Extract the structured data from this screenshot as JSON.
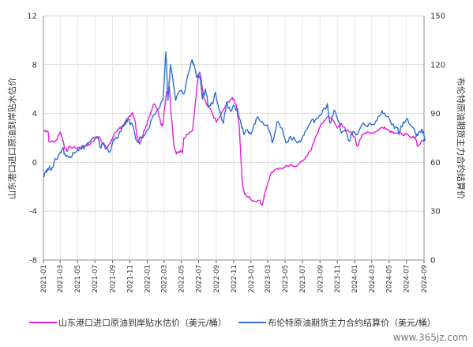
{
  "chart_data": {
    "type": "line",
    "title": "",
    "ylabel_left": "山东港口进口原油到岸贴水估价",
    "ylabel_right": "布伦特原油期货主力合约结算价",
    "y_left_ticks": [
      "-8",
      "-4",
      "0",
      "4",
      "8",
      "12"
    ],
    "y_right_ticks": [
      "0",
      "30",
      "60",
      "90",
      "120",
      "150"
    ],
    "ylim_left": [
      -8,
      12
    ],
    "ylim_right": [
      0,
      150
    ],
    "x_ticks": [
      "2021-01",
      "2021-03",
      "2021-05",
      "2021-07",
      "2021-09",
      "2021-11",
      "2022-01",
      "2022-03",
      "2022-05",
      "2022-07",
      "2022-09",
      "2022-11",
      "2023-01",
      "2023-03",
      "2023-05",
      "2023-07",
      "2023-09",
      "2023-11",
      "2024-01",
      "2024-03",
      "2024-05",
      "2024-07",
      "2024-09"
    ],
    "xlim": [
      "2021-01",
      "2024-09"
    ],
    "grid": true,
    "legend_position": "bottom",
    "series": [
      {
        "name": "山东港口进口原油到岸贴水估价（美元/桶）",
        "axis": "left",
        "color": "#e21fd9",
        "points": [
          [
            "2021-01-01",
            2.6
          ],
          [
            "2021-01-10",
            2.6
          ],
          [
            "2021-01-18",
            2.5
          ],
          [
            "2021-01-20",
            1.7
          ],
          [
            "2021-02-01",
            1.7
          ],
          [
            "2021-02-15",
            1.8
          ],
          [
            "2021-03-01",
            2.5
          ],
          [
            "2021-03-08",
            2.0
          ],
          [
            "2021-03-15",
            1.3
          ],
          [
            "2021-03-25",
            0.9
          ],
          [
            "2021-04-01",
            1.3
          ],
          [
            "2021-04-15",
            1.2
          ],
          [
            "2021-05-01",
            1.2
          ],
          [
            "2021-05-15",
            1.3
          ],
          [
            "2021-06-01",
            1.4
          ],
          [
            "2021-06-15",
            1.5
          ],
          [
            "2021-07-01",
            1.9
          ],
          [
            "2021-07-15",
            2.1
          ],
          [
            "2021-08-01",
            1.5
          ],
          [
            "2021-08-10",
            1.1
          ],
          [
            "2021-08-25",
            1.6
          ],
          [
            "2021-09-01",
            2.0
          ],
          [
            "2021-09-10",
            2.4
          ],
          [
            "2021-09-20",
            2.7
          ],
          [
            "2021-10-01",
            2.9
          ],
          [
            "2021-10-10",
            3.0
          ],
          [
            "2021-10-25",
            3.6
          ],
          [
            "2021-11-01",
            3.8
          ],
          [
            "2021-11-10",
            4.1
          ],
          [
            "2021-11-20",
            3.3
          ],
          [
            "2021-11-25",
            2.3
          ],
          [
            "2021-12-05",
            1.5
          ],
          [
            "2021-12-15",
            2.1
          ],
          [
            "2021-12-25",
            2.8
          ],
          [
            "2022-01-05",
            3.5
          ],
          [
            "2022-01-15",
            4.2
          ],
          [
            "2022-01-25",
            4.8
          ],
          [
            "2022-02-05",
            4.4
          ],
          [
            "2022-02-15",
            3.6
          ],
          [
            "2022-02-20",
            3.0
          ],
          [
            "2022-02-25",
            3.1
          ],
          [
            "2022-03-01",
            4.0
          ],
          [
            "2022-03-10",
            5.8
          ],
          [
            "2022-03-20",
            6.2
          ],
          [
            "2022-03-28",
            3.6
          ],
          [
            "2022-04-05",
            1.4
          ],
          [
            "2022-04-12",
            0.8
          ],
          [
            "2022-04-20",
            0.8
          ],
          [
            "2022-05-01",
            0.9
          ],
          [
            "2022-05-05",
            0.8
          ],
          [
            "2022-05-10",
            2.0
          ],
          [
            "2022-05-20",
            2.3
          ],
          [
            "2022-06-01",
            2.5
          ],
          [
            "2022-06-10",
            2.6
          ],
          [
            "2022-06-20",
            5.0
          ],
          [
            "2022-06-28",
            6.8
          ],
          [
            "2022-07-05",
            7.4
          ],
          [
            "2022-07-12",
            6.4
          ],
          [
            "2022-07-20",
            5.2
          ],
          [
            "2022-08-01",
            4.6
          ],
          [
            "2022-08-15",
            4.2
          ],
          [
            "2022-09-01",
            3.3
          ],
          [
            "2022-09-15",
            3.8
          ],
          [
            "2022-10-01",
            4.5
          ],
          [
            "2022-10-15",
            5.0
          ],
          [
            "2022-10-25",
            5.2
          ],
          [
            "2022-11-01",
            5.2
          ],
          [
            "2022-11-10",
            4.7
          ],
          [
            "2022-11-20",
            3.2
          ],
          [
            "2022-11-25",
            1.2
          ],
          [
            "2022-12-01",
            -1.4
          ],
          [
            "2022-12-05",
            -2.2
          ],
          [
            "2022-12-10",
            -2.6
          ],
          [
            "2022-12-20",
            -2.8
          ],
          [
            "2023-01-01",
            -3.0
          ],
          [
            "2023-01-15",
            -3.2
          ],
          [
            "2023-02-01",
            -3.1
          ],
          [
            "2023-02-10",
            -3.5
          ],
          [
            "2023-02-15",
            -3.0
          ],
          [
            "2023-02-20",
            -2.4
          ],
          [
            "2023-03-01",
            -1.7
          ],
          [
            "2023-03-15",
            -0.8
          ],
          [
            "2023-04-01",
            -0.5
          ],
          [
            "2023-04-15",
            -0.5
          ],
          [
            "2023-05-01",
            -0.4
          ],
          [
            "2023-05-15",
            -0.3
          ],
          [
            "2023-06-01",
            -0.3
          ],
          [
            "2023-06-15",
            -0.2
          ],
          [
            "2023-07-01",
            0.1
          ],
          [
            "2023-07-15",
            0.5
          ],
          [
            "2023-08-01",
            1.0
          ],
          [
            "2023-08-15",
            2.0
          ],
          [
            "2023-09-01",
            2.9
          ],
          [
            "2023-09-15",
            3.4
          ],
          [
            "2023-10-01",
            3.8
          ],
          [
            "2023-10-15",
            3.5
          ],
          [
            "2023-11-01",
            2.8
          ],
          [
            "2023-11-15",
            3.2
          ],
          [
            "2023-12-01",
            2.6
          ],
          [
            "2023-12-15",
            2.5
          ],
          [
            "2024-01-01",
            2.1
          ],
          [
            "2024-01-10",
            1.3
          ],
          [
            "2024-01-20",
            1.9
          ],
          [
            "2024-02-01",
            2.3
          ],
          [
            "2024-02-15",
            2.5
          ],
          [
            "2024-03-01",
            2.4
          ],
          [
            "2024-03-15",
            2.5
          ],
          [
            "2024-04-01",
            2.8
          ],
          [
            "2024-04-15",
            2.9
          ],
          [
            "2024-05-01",
            2.6
          ],
          [
            "2024-05-15",
            2.5
          ],
          [
            "2024-06-01",
            2.4
          ],
          [
            "2024-06-15",
            2.3
          ],
          [
            "2024-07-01",
            2.3
          ],
          [
            "2024-07-15",
            2.0
          ],
          [
            "2024-08-01",
            2.1
          ],
          [
            "2024-08-10",
            1.3
          ],
          [
            "2024-08-20",
            1.6
          ],
          [
            "2024-09-01",
            1.9
          ]
        ]
      },
      {
        "name": "布伦特原油期货主力合约结算价（美元/桶）",
        "axis": "right",
        "color": "#2f6fd0",
        "points": [
          [
            "2021-01-01",
            52
          ],
          [
            "2021-01-10",
            55
          ],
          [
            "2021-01-20",
            56
          ],
          [
            "2021-02-01",
            57
          ],
          [
            "2021-02-15",
            62
          ],
          [
            "2021-03-01",
            66
          ],
          [
            "2021-03-10",
            69
          ],
          [
            "2021-03-20",
            64
          ],
          [
            "2021-04-01",
            63
          ],
          [
            "2021-04-15",
            66
          ],
          [
            "2021-05-01",
            68
          ],
          [
            "2021-05-15",
            68
          ],
          [
            "2021-06-01",
            71
          ],
          [
            "2021-06-15",
            73
          ],
          [
            "2021-07-01",
            75
          ],
          [
            "2021-07-15",
            74
          ],
          [
            "2021-07-20",
            69
          ],
          [
            "2021-08-01",
            72
          ],
          [
            "2021-08-20",
            66
          ],
          [
            "2021-09-01",
            72
          ],
          [
            "2021-09-15",
            75
          ],
          [
            "2021-10-01",
            79
          ],
          [
            "2021-10-15",
            84
          ],
          [
            "2021-10-25",
            86
          ],
          [
            "2021-11-10",
            83
          ],
          [
            "2021-11-26",
            73
          ],
          [
            "2021-12-10",
            75
          ],
          [
            "2021-12-25",
            77
          ],
          [
            "2022-01-10",
            82
          ],
          [
            "2022-01-25",
            89
          ],
          [
            "2022-02-10",
            93
          ],
          [
            "2022-02-25",
            98
          ],
          [
            "2022-03-08",
            128
          ],
          [
            "2022-03-15",
            98
          ],
          [
            "2022-03-24",
            120
          ],
          [
            "2022-04-11",
            98
          ],
          [
            "2022-04-25",
            104
          ],
          [
            "2022-05-10",
            102
          ],
          [
            "2022-05-25",
            114
          ],
          [
            "2022-06-08",
            123
          ],
          [
            "2022-06-15",
            120
          ],
          [
            "2022-06-25",
            112
          ],
          [
            "2022-07-05",
            113
          ],
          [
            "2022-07-14",
            99
          ],
          [
            "2022-07-25",
            105
          ],
          [
            "2022-08-05",
            94
          ],
          [
            "2022-08-18",
            96
          ],
          [
            "2022-08-29",
            103
          ],
          [
            "2022-09-15",
            91
          ],
          [
            "2022-09-26",
            84
          ],
          [
            "2022-10-07",
            97
          ],
          [
            "2022-10-20",
            92
          ],
          [
            "2022-11-01",
            95
          ],
          [
            "2022-11-15",
            93
          ],
          [
            "2022-11-28",
            83
          ],
          [
            "2022-12-07",
            77
          ],
          [
            "2022-12-20",
            80
          ],
          [
            "2023-01-03",
            78
          ],
          [
            "2023-01-20",
            87
          ],
          [
            "2023-02-10",
            85
          ],
          [
            "2023-02-28",
            83
          ],
          [
            "2023-03-17",
            72
          ],
          [
            "2023-04-03",
            85
          ],
          [
            "2023-04-20",
            81
          ],
          [
            "2023-05-04",
            72
          ],
          [
            "2023-05-20",
            76
          ],
          [
            "2023-06-12",
            72
          ],
          [
            "2023-06-28",
            74
          ],
          [
            "2023-07-15",
            80
          ],
          [
            "2023-07-31",
            85
          ],
          [
            "2023-08-15",
            86
          ],
          [
            "2023-09-05",
            89
          ],
          [
            "2023-09-27",
            96
          ],
          [
            "2023-10-06",
            84
          ],
          [
            "2023-10-20",
            92
          ],
          [
            "2023-11-05",
            85
          ],
          [
            "2023-11-16",
            78
          ],
          [
            "2023-12-01",
            79
          ],
          [
            "2023-12-12",
            73
          ],
          [
            "2023-12-26",
            79
          ],
          [
            "2024-01-10",
            77
          ],
          [
            "2024-01-26",
            83
          ],
          [
            "2024-02-15",
            82
          ],
          [
            "2024-03-01",
            83
          ],
          [
            "2024-03-20",
            86
          ],
          [
            "2024-04-05",
            91
          ],
          [
            "2024-04-12",
            90
          ],
          [
            "2024-04-25",
            88
          ],
          [
            "2024-05-10",
            83
          ],
          [
            "2024-05-31",
            81
          ],
          [
            "2024-06-04",
            77
          ],
          [
            "2024-06-20",
            85
          ],
          [
            "2024-07-05",
            87
          ],
          [
            "2024-07-20",
            82
          ],
          [
            "2024-08-05",
            76
          ],
          [
            "2024-08-15",
            79
          ],
          [
            "2024-08-25",
            80
          ],
          [
            "2024-09-01",
            77
          ],
          [
            "2024-09-05",
            73
          ]
        ]
      }
    ],
    "legend": [
      {
        "label": "山东港口进口原油到岸贴水估价（美元/桶）",
        "color": "#e21fd9"
      },
      {
        "label": "布伦特原油期货主力合约结算价（美元/桶）",
        "color": "#2f6fd0"
      }
    ]
  },
  "watermark": "www.365jz.com"
}
